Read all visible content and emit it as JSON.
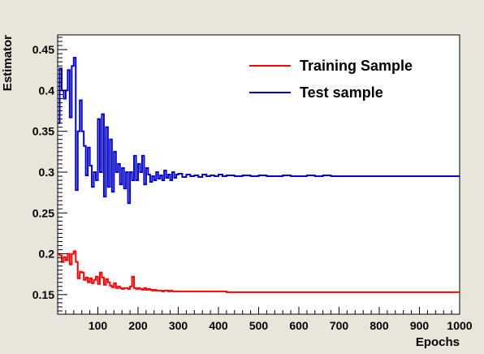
{
  "chart_data": {
    "type": "line",
    "title": "",
    "xlabel": "Epochs",
    "ylabel": "Estimator",
    "xlim": [
      0,
      1000
    ],
    "ylim": [
      0.126,
      0.468
    ],
    "grid": false,
    "legend_position": "top-right",
    "x_ticks": [
      100,
      200,
      300,
      400,
      500,
      600,
      700,
      800,
      900,
      1000
    ],
    "x_tick_labels": [
      "100",
      "200",
      "300",
      "400",
      "500",
      "600",
      "700",
      "800",
      "900",
      "1000"
    ],
    "y_ticks": [
      0.15,
      0.2,
      0.25,
      0.3,
      0.35,
      0.4,
      0.45
    ],
    "y_tick_labels": [
      "0.15",
      "0.2",
      "0.25",
      "0.3",
      "0.35",
      "0.4",
      "0.45"
    ],
    "series": [
      {
        "name": "Training Sample",
        "color": "#ff0000",
        "x": [
          0,
          5,
          10,
          15,
          20,
          25,
          30,
          35,
          40,
          45,
          50,
          55,
          60,
          65,
          70,
          75,
          80,
          85,
          90,
          95,
          100,
          105,
          110,
          115,
          120,
          125,
          130,
          135,
          140,
          145,
          150,
          155,
          160,
          165,
          170,
          175,
          180,
          185,
          190,
          195,
          200,
          205,
          210,
          215,
          220,
          225,
          230,
          235,
          240,
          245,
          250,
          255,
          260,
          265,
          270,
          275,
          280,
          285,
          290,
          295,
          300,
          310,
          320,
          330,
          340,
          350,
          360,
          370,
          380,
          390,
          400,
          410,
          420,
          440,
          460,
          480,
          500,
          520,
          540,
          560,
          580,
          600,
          620,
          640,
          660,
          680,
          700,
          750,
          800,
          850,
          900,
          950,
          1000
        ],
        "values": [
          0.2,
          0.198,
          0.19,
          0.196,
          0.192,
          0.2,
          0.187,
          0.2,
          0.203,
          0.19,
          0.17,
          0.178,
          0.177,
          0.168,
          0.171,
          0.165,
          0.17,
          0.164,
          0.168,
          0.172,
          0.163,
          0.177,
          0.171,
          0.162,
          0.169,
          0.165,
          0.161,
          0.159,
          0.164,
          0.158,
          0.16,
          0.158,
          0.157,
          0.158,
          0.158,
          0.157,
          0.16,
          0.172,
          0.158,
          0.157,
          0.158,
          0.157,
          0.156,
          0.158,
          0.156,
          0.157,
          0.156,
          0.155,
          0.156,
          0.155,
          0.155,
          0.155,
          0.154,
          0.155,
          0.155,
          0.154,
          0.155,
          0.154,
          0.154,
          0.154,
          0.154,
          0.154,
          0.154,
          0.154,
          0.154,
          0.154,
          0.154,
          0.154,
          0.154,
          0.154,
          0.154,
          0.154,
          0.153,
          0.153,
          0.153,
          0.153,
          0.153,
          0.153,
          0.153,
          0.153,
          0.153,
          0.153,
          0.153,
          0.153,
          0.153,
          0.153,
          0.153,
          0.153,
          0.153,
          0.153,
          0.153,
          0.153,
          0.153
        ]
      },
      {
        "name": "Test sample",
        "color": "#0000dd",
        "x": [
          0,
          5,
          10,
          15,
          20,
          25,
          30,
          35,
          40,
          45,
          50,
          55,
          60,
          65,
          70,
          75,
          80,
          85,
          90,
          95,
          100,
          105,
          110,
          115,
          120,
          125,
          130,
          135,
          140,
          145,
          150,
          155,
          160,
          165,
          170,
          175,
          180,
          185,
          190,
          195,
          200,
          205,
          210,
          215,
          220,
          225,
          230,
          235,
          240,
          245,
          250,
          255,
          260,
          265,
          270,
          275,
          280,
          285,
          290,
          295,
          300,
          310,
          320,
          330,
          340,
          350,
          360,
          370,
          380,
          390,
          400,
          410,
          420,
          440,
          460,
          480,
          500,
          520,
          540,
          560,
          580,
          600,
          620,
          640,
          660,
          680,
          700,
          750,
          800,
          850,
          900,
          950,
          1000
        ],
        "values": [
          0.36,
          0.427,
          0.4,
          0.39,
          0.4,
          0.425,
          0.367,
          0.43,
          0.44,
          0.278,
          0.35,
          0.388,
          0.35,
          0.332,
          0.296,
          0.33,
          0.308,
          0.282,
          0.3,
          0.29,
          0.365,
          0.3,
          0.371,
          0.27,
          0.355,
          0.282,
          0.34,
          0.276,
          0.325,
          0.3,
          0.31,
          0.285,
          0.305,
          0.28,
          0.3,
          0.262,
          0.3,
          0.29,
          0.32,
          0.29,
          0.31,
          0.3,
          0.32,
          0.285,
          0.305,
          0.297,
          0.288,
          0.295,
          0.29,
          0.3,
          0.292,
          0.296,
          0.29,
          0.302,
          0.293,
          0.297,
          0.29,
          0.3,
          0.293,
          0.297,
          0.298,
          0.294,
          0.297,
          0.295,
          0.296,
          0.294,
          0.297,
          0.295,
          0.296,
          0.295,
          0.297,
          0.295,
          0.296,
          0.295,
          0.296,
          0.295,
          0.296,
          0.295,
          0.295,
          0.296,
          0.295,
          0.295,
          0.296,
          0.295,
          0.296,
          0.295,
          0.295,
          0.295,
          0.295,
          0.295,
          0.295,
          0.295,
          0.295
        ]
      }
    ]
  }
}
